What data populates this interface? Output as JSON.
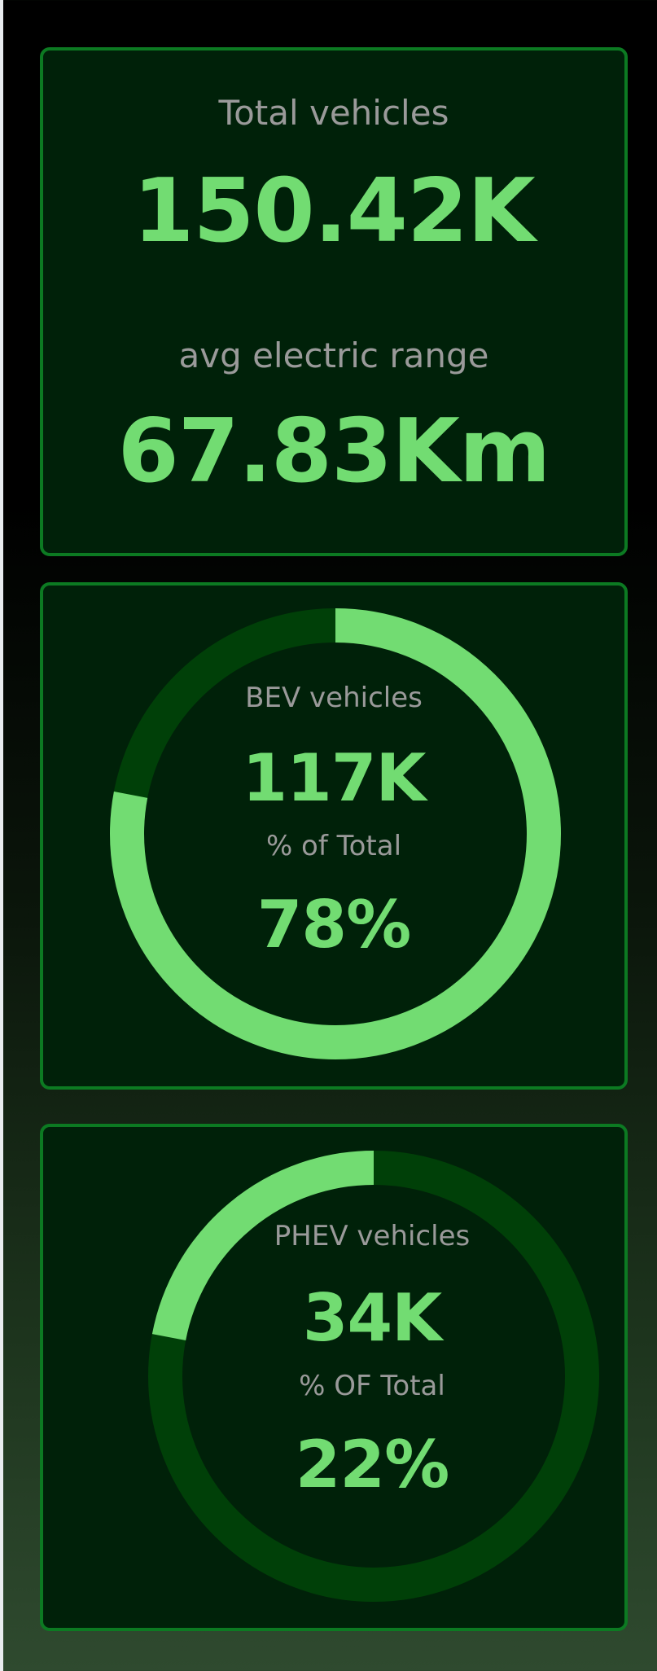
{
  "totals": {
    "total_label": "Total vehicles",
    "total_value": "150.42K",
    "range_label": "avg electric range",
    "range_value": "67.83Km"
  },
  "bev": {
    "label": "BEV vehicles",
    "value": "117K",
    "share_label": "% of Total",
    "share_value": "78%",
    "fraction": 0.78
  },
  "phev": {
    "label": "PHEV vehicles",
    "value": "34K",
    "share_label": "% OF Total",
    "share_value": "22%",
    "fraction": 0.22
  },
  "colors": {
    "card_bg": "#002109",
    "card_border": "#0c7a22",
    "accent": "#72dc72",
    "ring_track": "#004008",
    "label_gray": "#9a9a9a"
  }
}
